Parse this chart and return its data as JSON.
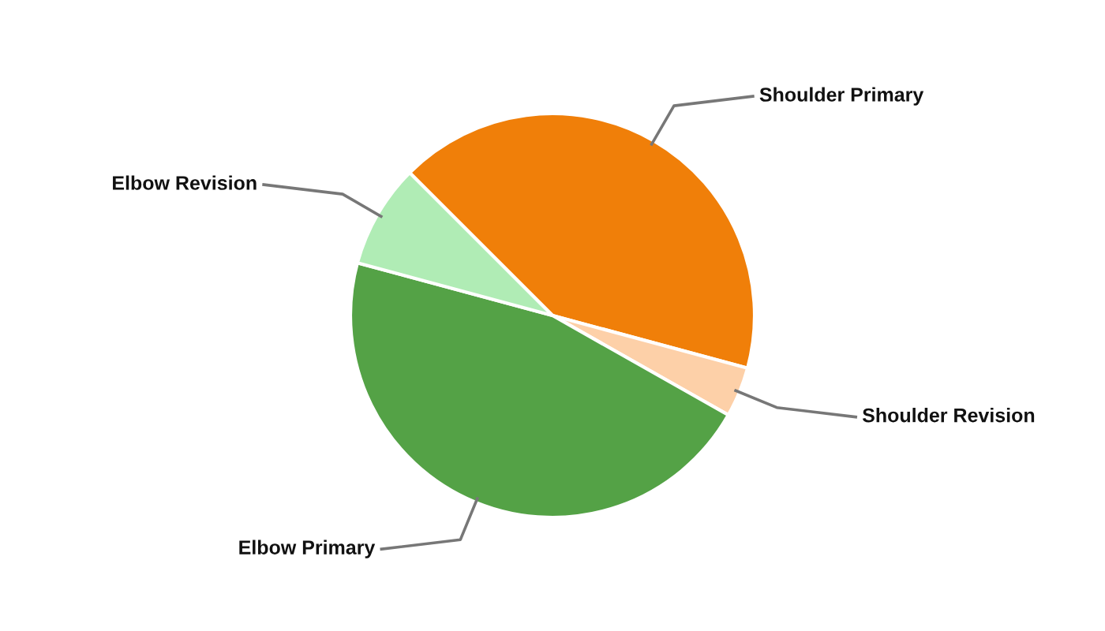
{
  "chart_data": {
    "type": "pie",
    "categories": [
      "Shoulder Primary",
      "Shoulder Revision",
      "Elbow Primary",
      "Elbow Revision"
    ],
    "values": [
      41.7,
      4,
      46,
      8.3
    ],
    "colors": [
      "#f07f09",
      "#fdd0a8",
      "#54a246",
      "#b0ecb5"
    ],
    "legend": false
  }
}
